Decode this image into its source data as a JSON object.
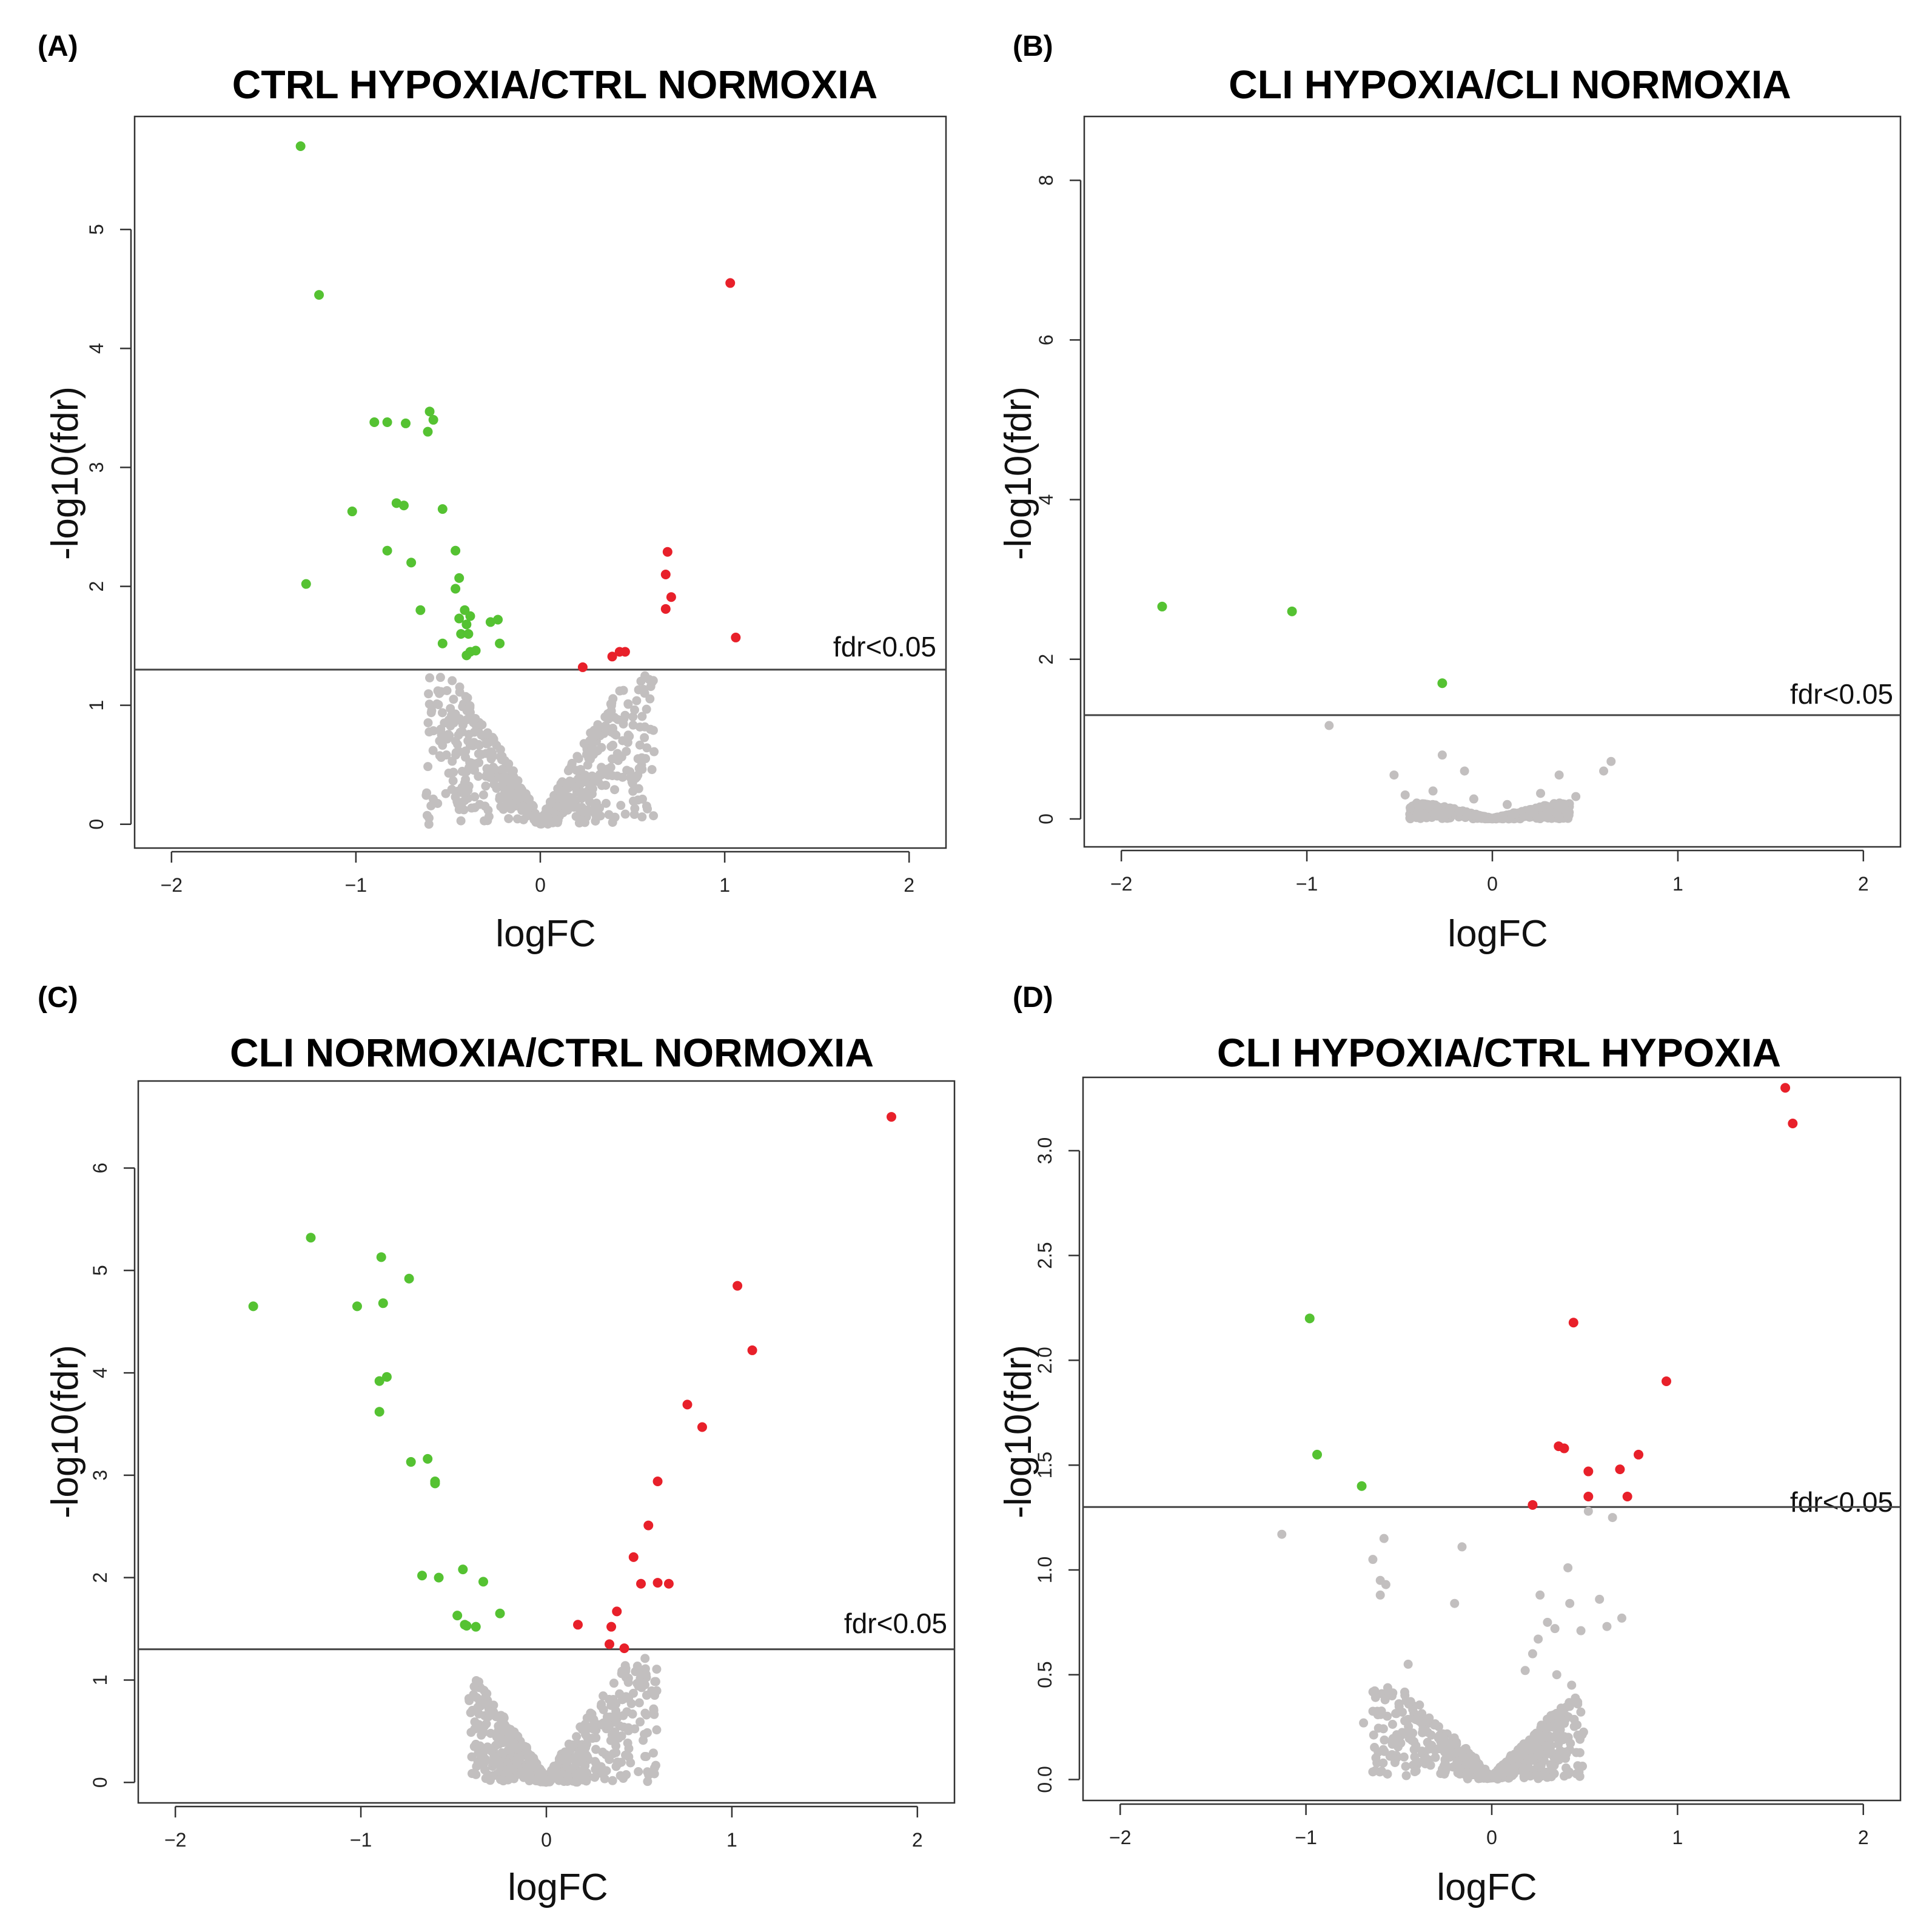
{
  "colors": {
    "up": "#e8202a",
    "down": "#55c232",
    "ns": "#c2bfbf",
    "axis": "#333333"
  },
  "chart_data": [
    {
      "panel": "(A)",
      "type": "scatter",
      "title": "CTRL HYPOXIA/CTRL NORMOXIA",
      "xlabel": "logFC",
      "ylabel": "-log10(fdr)",
      "xlim": [
        -2.2,
        2.2
      ],
      "ylim": [
        -0.2,
        5.95
      ],
      "xticks": [
        -2,
        -1,
        0,
        1,
        2
      ],
      "xtick_labels": [
        "−2",
        "−1",
        "0",
        "1",
        "2"
      ],
      "yticks": [
        0,
        1,
        2,
        3,
        4,
        5
      ],
      "ytick_labels": [
        "0",
        "1",
        "2",
        "3",
        "4",
        "5"
      ],
      "threshold": 1.3,
      "threshold_label": "fdr<0.05",
      "grey_cloud": {
        "xspan": [
          0.62,
          0.62
        ],
        "ymax": 1.25,
        "seed": 11
      },
      "down": [
        [
          -1.3,
          5.7
        ],
        [
          -1.2,
          4.45
        ],
        [
          -0.9,
          3.38
        ],
        [
          -0.83,
          3.38
        ],
        [
          -0.73,
          3.37
        ],
        [
          -0.6,
          3.47
        ],
        [
          -0.58,
          3.4
        ],
        [
          -0.61,
          3.3
        ],
        [
          -1.02,
          2.63
        ],
        [
          -0.78,
          2.7
        ],
        [
          -0.74,
          2.68
        ],
        [
          -0.53,
          2.65
        ],
        [
          -0.83,
          2.3
        ],
        [
          -0.7,
          2.2
        ],
        [
          -0.46,
          2.3
        ],
        [
          -0.44,
          2.07
        ],
        [
          -0.46,
          1.98
        ],
        [
          -1.27,
          2.02
        ],
        [
          -0.65,
          1.8
        ],
        [
          -0.41,
          1.8
        ],
        [
          -0.38,
          1.75
        ],
        [
          -0.44,
          1.73
        ],
        [
          -0.4,
          1.68
        ],
        [
          -0.27,
          1.7
        ],
        [
          -0.23,
          1.72
        ],
        [
          -0.43,
          1.6
        ],
        [
          -0.39,
          1.6
        ],
        [
          -0.53,
          1.52
        ],
        [
          -0.22,
          1.52
        ],
        [
          -0.38,
          1.45
        ],
        [
          -0.35,
          1.46
        ],
        [
          -0.4,
          1.42
        ]
      ],
      "up": [
        [
          1.03,
          4.55
        ],
        [
          0.69,
          2.29
        ],
        [
          0.68,
          2.1
        ],
        [
          0.71,
          1.91
        ],
        [
          0.68,
          1.81
        ],
        [
          1.06,
          1.57
        ],
        [
          0.46,
          1.45
        ],
        [
          0.43,
          1.45
        ],
        [
          0.39,
          1.41
        ],
        [
          0.23,
          1.32
        ]
      ]
    },
    {
      "panel": "(B)",
      "type": "scatter",
      "title": "CLI HYPOXIA/CLI NORMOXIA",
      "xlabel": "logFC",
      "ylabel": "-log10(fdr)",
      "xlim": [
        -2.2,
        2.2
      ],
      "ylim": [
        -0.35,
        8.8
      ],
      "xticks": [
        -2,
        -1,
        0,
        1,
        2
      ],
      "xtick_labels": [
        "−2",
        "−1",
        "0",
        "1",
        "2"
      ],
      "yticks": [
        0,
        2,
        4,
        6,
        8
      ],
      "ytick_labels": [
        "0",
        "2",
        "4",
        "6",
        "8"
      ],
      "threshold": 1.3,
      "threshold_label": "fdr<0.05",
      "grey_cloud": {
        "xspan": [
          0.45,
          0.42
        ],
        "ymax": 0.2,
        "seed": 23
      },
      "grey_extra": [
        [
          -0.88,
          1.17
        ],
        [
          -0.27,
          0.8
        ],
        [
          -0.53,
          0.55
        ],
        [
          -0.47,
          0.3
        ],
        [
          -0.32,
          0.35
        ],
        [
          -0.15,
          0.6
        ],
        [
          0.36,
          0.55
        ],
        [
          0.6,
          0.6
        ],
        [
          0.64,
          0.72
        ],
        [
          0.26,
          0.32
        ],
        [
          0.45,
          0.28
        ],
        [
          -0.1,
          0.25
        ],
        [
          0.08,
          0.18
        ]
      ],
      "down": [
        [
          -1.78,
          2.66
        ],
        [
          -1.08,
          2.6
        ],
        [
          -0.27,
          1.7
        ]
      ],
      "up": []
    },
    {
      "panel": "(C)",
      "type": "scatter",
      "title": "CLI NORMOXIA/CTRL NORMOXIA",
      "xlabel": "logFC",
      "ylabel": "-log10(fdr)",
      "xlim": [
        -2.2,
        2.2
      ],
      "ylim": [
        -0.2,
        6.85
      ],
      "xticks": [
        -2,
        -1,
        0,
        1,
        2
      ],
      "xtick_labels": [
        "−2",
        "−1",
        "0",
        "1",
        "2"
      ],
      "yticks": [
        0,
        1,
        2,
        3,
        4,
        5,
        6
      ],
      "ytick_labels": [
        "0",
        "1",
        "2",
        "3",
        "4",
        "5",
        "6"
      ],
      "threshold": 1.3,
      "threshold_label": "fdr<0.05",
      "grey_cloud": {
        "xspan": [
          0.42,
          0.6
        ],
        "ymax": 1.22,
        "seed": 37
      },
      "down": [
        [
          -1.27,
          5.32
        ],
        [
          -0.89,
          5.13
        ],
        [
          -0.74,
          4.92
        ],
        [
          -1.58,
          4.65
        ],
        [
          -1.02,
          4.65
        ],
        [
          -0.88,
          4.68
        ],
        [
          -0.86,
          3.96
        ],
        [
          -0.9,
          3.92
        ],
        [
          -0.9,
          3.62
        ],
        [
          -0.73,
          3.13
        ],
        [
          -0.64,
          3.16
        ],
        [
          -0.6,
          2.94
        ],
        [
          -0.6,
          2.92
        ],
        [
          -0.67,
          2.02
        ],
        [
          -0.58,
          2.0
        ],
        [
          -0.45,
          2.08
        ],
        [
          -0.34,
          1.96
        ],
        [
          -0.48,
          1.63
        ],
        [
          -0.44,
          1.54
        ],
        [
          -0.38,
          1.52
        ],
        [
          -0.43,
          1.53
        ],
        [
          -0.25,
          1.65
        ]
      ],
      "up": [
        [
          1.86,
          6.5
        ],
        [
          1.03,
          4.85
        ],
        [
          1.11,
          4.22
        ],
        [
          0.76,
          3.69
        ],
        [
          0.84,
          3.47
        ],
        [
          0.6,
          2.94
        ],
        [
          0.55,
          2.51
        ],
        [
          0.47,
          2.2
        ],
        [
          0.51,
          1.94
        ],
        [
          0.6,
          1.95
        ],
        [
          0.66,
          1.94
        ],
        [
          0.38,
          1.67
        ],
        [
          0.35,
          1.52
        ],
        [
          0.17,
          1.54
        ],
        [
          0.34,
          1.35
        ],
        [
          0.42,
          1.31
        ]
      ]
    },
    {
      "panel": "(D)",
      "type": "scatter",
      "title": "CLI HYPOXIA/CTRL HYPOXIA",
      "xlabel": "logFC",
      "ylabel": "-log10(fdr)",
      "xlim": [
        -2.2,
        2.2
      ],
      "ylim": [
        -0.1,
        3.35
      ],
      "xticks": [
        -2,
        -1,
        0,
        1,
        2
      ],
      "xtick_labels": [
        "−2",
        "−1",
        "0",
        "1",
        "2"
      ],
      "yticks": [
        0,
        0.5,
        1,
        1.5,
        2,
        2.5,
        3
      ],
      "ytick_labels": [
        "0.0",
        "0.5",
        "1.0",
        "1.5",
        "2.0",
        "2.5",
        "3.0"
      ],
      "threshold": 1.3,
      "threshold_label": "fdr<0.05",
      "grey_cloud": {
        "xspan": [
          0.65,
          0.5
        ],
        "ymax": 0.45,
        "seed": 53
      },
      "grey_extra": [
        [
          -1.13,
          1.17
        ],
        [
          -0.58,
          1.15
        ],
        [
          -0.64,
          1.05
        ],
        [
          -0.6,
          0.95
        ],
        [
          -0.57,
          0.93
        ],
        [
          -0.6,
          0.88
        ],
        [
          -0.16,
          1.11
        ],
        [
          -0.2,
          0.84
        ],
        [
          -0.45,
          0.55
        ],
        [
          -0.69,
          0.27
        ],
        [
          0.41,
          1.01
        ],
        [
          0.52,
          1.28
        ],
        [
          0.65,
          1.25
        ],
        [
          0.58,
          0.86
        ],
        [
          0.42,
          0.84
        ],
        [
          0.7,
          0.77
        ],
        [
          0.62,
          0.73
        ],
        [
          0.48,
          0.71
        ],
        [
          0.26,
          0.88
        ],
        [
          0.3,
          0.75
        ],
        [
          0.25,
          0.67
        ],
        [
          0.22,
          0.6
        ],
        [
          0.18,
          0.52
        ],
        [
          0.35,
          0.5
        ],
        [
          0.43,
          0.45
        ],
        [
          0.34,
          0.72
        ]
      ],
      "down": [
        [
          -0.98,
          2.2
        ],
        [
          -0.94,
          1.55
        ],
        [
          -0.7,
          1.4
        ]
      ],
      "up": [
        [
          1.58,
          3.3
        ],
        [
          1.62,
          3.13
        ],
        [
          0.44,
          2.18
        ],
        [
          0.94,
          1.9
        ],
        [
          0.36,
          1.59
        ],
        [
          0.39,
          1.58
        ],
        [
          0.79,
          1.55
        ],
        [
          0.52,
          1.47
        ],
        [
          0.69,
          1.48
        ],
        [
          0.52,
          1.35
        ],
        [
          0.73,
          1.35
        ],
        [
          0.22,
          1.31
        ]
      ]
    }
  ]
}
